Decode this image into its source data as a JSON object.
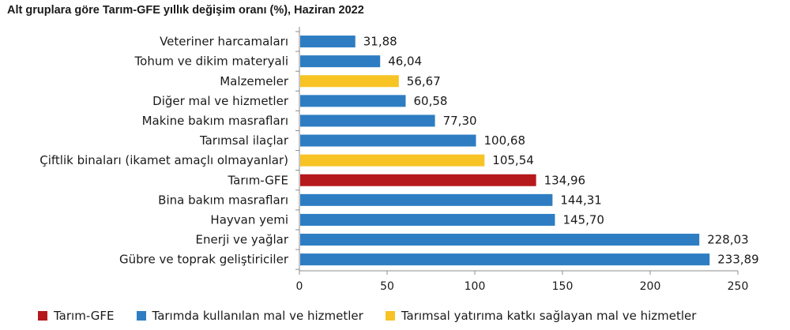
{
  "chart_data": {
    "type": "bar",
    "orientation": "horizontal",
    "title": "Alt gruplara göre Tarım-GFE yıllık değişim oranı (%), Haziran 2022",
    "categories": [
      "Veteriner harcamaları",
      "Tohum ve dikim materyali",
      "Malzemeler",
      "Diğer mal ve hizmetler",
      "Makine bakım masrafları",
      "Tarımsal ilaçlar",
      "Çiftlik binaları (ikamet amaçlı olmayanlar)",
      "Tarım-GFE",
      "Bina bakım masrafları",
      "Hayvan yemi",
      "Enerji ve yağlar",
      "Gübre ve toprak geliştiriciler"
    ],
    "values": [
      31.88,
      46.04,
      56.67,
      60.58,
      77.3,
      100.68,
      105.54,
      134.96,
      144.31,
      145.7,
      228.03,
      233.89
    ],
    "value_labels": [
      "31,88",
      "46,04",
      "56,67",
      "60,58",
      "77,30",
      "100,68",
      "105,54",
      "134,96",
      "144,31",
      "145,70",
      "228,03",
      "233,89"
    ],
    "groups": [
      1,
      1,
      2,
      1,
      1,
      1,
      2,
      0,
      1,
      1,
      1,
      1
    ],
    "legend": [
      {
        "name": "Tarım-GFE",
        "color": "#b5191c"
      },
      {
        "name": "Tarımda kullanılan mal ve hizmetler",
        "color": "#2e7dc3"
      },
      {
        "name": "Tarımsal yatırıma katkı sağlayan mal ve hizmetler",
        "color": "#f7c325"
      }
    ],
    "xlim": [
      0,
      250
    ],
    "xticks": [
      0,
      50,
      100,
      150,
      200,
      250
    ],
    "grid": false,
    "legend_position": "bottom"
  }
}
